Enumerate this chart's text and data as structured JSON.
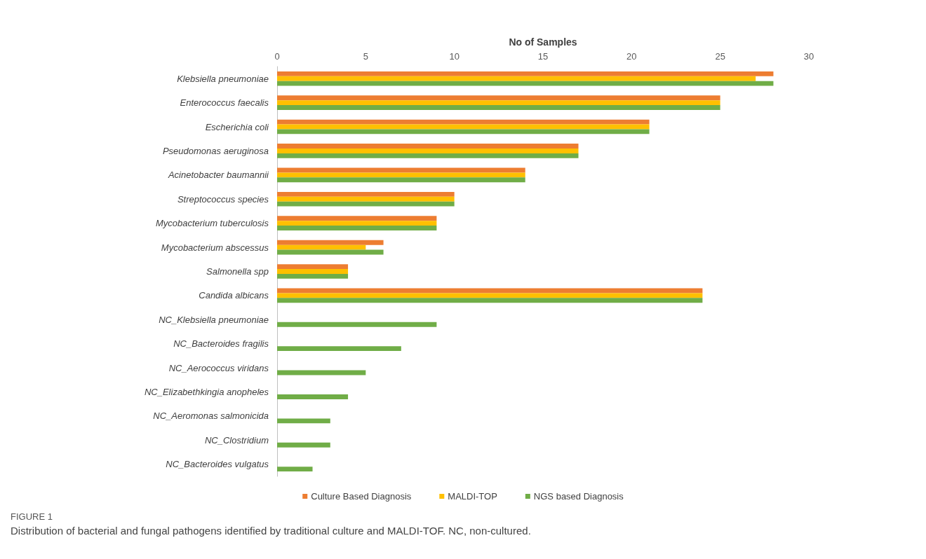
{
  "chart_data": {
    "type": "bar",
    "orientation": "horizontal",
    "xlabel": "No of Samples",
    "categories": [
      "Klebsiella pneumoniae",
      "Enterococcus faecalis",
      "Escherichia coli",
      "Pseudomonas aeruginosa",
      "Acinetobacter baumannii",
      "Streptococcus species",
      "Mycobacterium tuberculosis",
      "Mycobacterium abscessus",
      "Salmonella spp",
      "Candida albicans",
      "NC_Klebsiella pneumoniae",
      "NC_Bacteroides fragilis",
      "NC_Aerococcus viridans",
      "NC_Elizabethkingia anopheles",
      "NC_Aeromonas salmonicida",
      "NC_Clostridium",
      "NC_Bacteroides vulgatus"
    ],
    "series": [
      {
        "name": "Culture Based Diagnosis",
        "color": "#ed7d31",
        "values": [
          28,
          25,
          21,
          17,
          14,
          10,
          9,
          6,
          4,
          24,
          null,
          null,
          null,
          null,
          null,
          null,
          null
        ]
      },
      {
        "name": "MALDI-TOP",
        "color": "#ffc000",
        "values": [
          27,
          25,
          21,
          17,
          14,
          10,
          9,
          5,
          4,
          24,
          null,
          null,
          null,
          null,
          null,
          null,
          null
        ]
      },
      {
        "name": "NGS based Diagnosis",
        "color": "#70ad47",
        "values": [
          28,
          25,
          21,
          17,
          14,
          10,
          9,
          6,
          4,
          24,
          9,
          7,
          5,
          4,
          3,
          3,
          2
        ]
      }
    ],
    "xlim": [
      0,
      30
    ],
    "xticks": [
      0,
      5,
      10,
      15,
      20,
      25,
      30
    ],
    "grid": false,
    "legend": "bottom",
    "annotations": [
      "FIGURE 1",
      "Distribution of bacterial and fungal pathogens identified by traditional culture and MALDI-TOF. NC, non-cultured."
    ]
  }
}
